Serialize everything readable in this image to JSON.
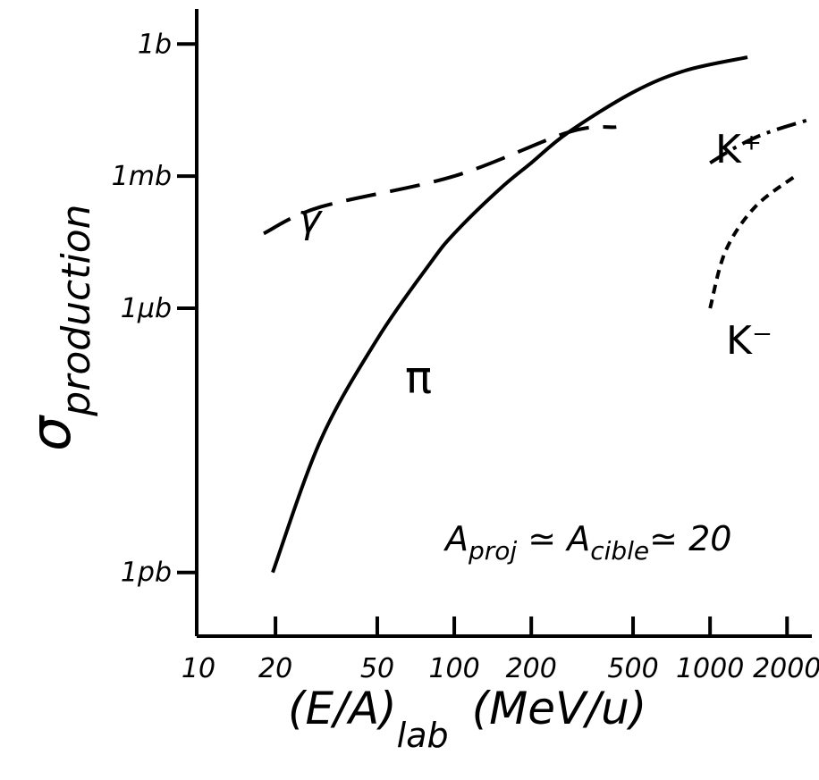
{
  "chart_data": {
    "type": "line",
    "title": "",
    "xlabel": {
      "main": "(E/A)",
      "sub": "lab",
      "unit": "(MeV/u)"
    },
    "ylabel": {
      "main": "σ",
      "sub": "production"
    },
    "x_scale": "log",
    "y_scale": "log",
    "xlim": [
      10,
      2500
    ],
    "ylim_barn": [
      1e-13,
      10.0
    ],
    "x_ticks": [
      10,
      20,
      50,
      100,
      200,
      500,
      1000,
      2000
    ],
    "x_tick_labels": [
      "10",
      "20",
      "50",
      "100",
      "200",
      "500",
      "1000",
      "2000"
    ],
    "y_ticks_barn": [
      1e-12,
      1e-06,
      0.001,
      1
    ],
    "y_tick_labels": [
      "1pb",
      "1μb",
      "1mb",
      "1b"
    ],
    "grid": false,
    "series": [
      {
        "name": "π",
        "style": "solid",
        "x": [
          19.5,
          30,
          50,
          80,
          100,
          150,
          200,
          280,
          500,
          800,
          1400
        ],
        "y_barn": [
          1e-12,
          1e-09,
          2e-07,
          1e-05,
          5e-05,
          0.0005,
          0.002,
          0.01,
          0.08,
          0.25,
          0.5
        ]
      },
      {
        "name": "γ",
        "style": "dashed",
        "x": [
          18,
          30,
          100,
          280,
          430
        ],
        "y_barn": [
          5e-05,
          0.0002,
          0.001,
          0.01,
          0.013
        ]
      },
      {
        "name": "K⁺",
        "style": "dash-dot",
        "x": [
          1000,
          1300,
          1700,
          2500
        ],
        "y_barn": [
          0.002,
          0.005,
          0.01,
          0.02
        ]
      },
      {
        "name": "K⁻",
        "style": "short-dash",
        "x": [
          1000,
          1150,
          1500,
          2150
        ],
        "y_barn": [
          1e-06,
          2e-05,
          0.0002,
          0.001
        ]
      }
    ],
    "annotations": {
      "pi_label": "π",
      "gamma_label": "γ",
      "kplus_label": "K⁺",
      "kminus_label": "K⁻",
      "system_text": {
        "A1": "A",
        "sub1": "proj",
        "op1": " ≃ ",
        "A2": "A",
        "sub2": "cible",
        "op2": "≃ 20"
      }
    }
  }
}
